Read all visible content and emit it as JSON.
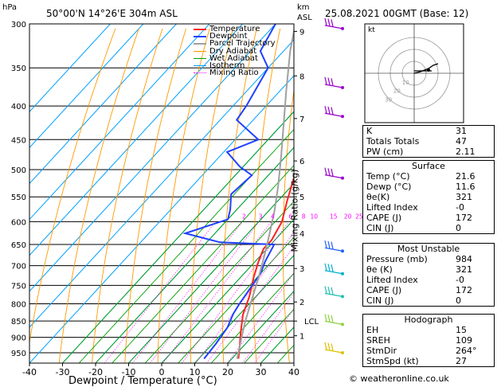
{
  "header": {
    "location": "50°00'N  14°26'E  304m  ASL",
    "datetime": "25.08.2021  00GMT  (Base: 12)",
    "hpa_unit": "hPa",
    "km_unit": "km",
    "asl_unit": "ASL"
  },
  "axes": {
    "xlabel": "Dewpoint / Temperature (°C)",
    "ylabel_right": "Mixing Ratio (g/kg)"
  },
  "colors": {
    "temperature": "#ff2020",
    "dewpoint": "#2040ff",
    "parcel": "#a0a0a0",
    "dry_adiabat": "#ff9900",
    "wet_adiabat": "#00a000",
    "isotherm": "#00a0ff",
    "mixing_ratio": "#ff00ff"
  },
  "legend": [
    {
      "label": "Temperature",
      "color": "#ff2020",
      "style": "solid"
    },
    {
      "label": "Dewpoint",
      "color": "#2040ff",
      "style": "solid"
    },
    {
      "label": "Parcel Trajectory",
      "color": "#a0a0a0",
      "style": "solid"
    },
    {
      "label": "Dry Adiabat",
      "color": "#ff9900",
      "style": "solid"
    },
    {
      "label": "Wet Adiabat",
      "color": "#00a000",
      "style": "solid"
    },
    {
      "label": "Isotherm",
      "color": "#00a0ff",
      "style": "solid"
    },
    {
      "label": "Mixing Ratio",
      "color": "#ff00ff",
      "style": "dotted"
    }
  ],
  "chart_data": {
    "type": "line",
    "xlim": [
      -40,
      40
    ],
    "pressure_levels": [
      300,
      350,
      400,
      450,
      500,
      550,
      600,
      650,
      700,
      750,
      800,
      850,
      900,
      950
    ],
    "x_ticks": [
      -40,
      -30,
      -20,
      -10,
      0,
      10,
      20,
      30,
      40
    ],
    "km_ticks": [
      {
        "label": "9",
        "p": 308
      },
      {
        "label": "8",
        "p": 360
      },
      {
        "label": "7",
        "p": 418
      },
      {
        "label": "6",
        "p": 485
      },
      {
        "label": "5",
        "p": 550
      },
      {
        "label": "4",
        "p": 625
      },
      {
        "label": "3",
        "p": 707
      },
      {
        "label": "2",
        "p": 795
      },
      {
        "label": "1",
        "p": 895
      }
    ],
    "lcl_label": "LCL",
    "lcl_p": 850,
    "mixing_ratio_labels": [
      "2",
      "3",
      "4",
      "6",
      "8",
      "10",
      "15",
      "20",
      "25"
    ],
    "series": [
      {
        "name": "Temperature",
        "points": [
          [
            22,
            970
          ],
          [
            19,
            930
          ],
          [
            15,
            880
          ],
          [
            11,
            830
          ],
          [
            8,
            780
          ],
          [
            4,
            730
          ],
          [
            1,
            690
          ],
          [
            -1,
            660
          ],
          [
            -1,
            640
          ],
          [
            -3,
            600
          ],
          [
            -7,
            560
          ],
          [
            -11,
            520
          ],
          [
            -13,
            500
          ],
          [
            -16,
            470
          ],
          [
            -18,
            450
          ],
          [
            -23,
            410
          ],
          [
            -28,
            370
          ],
          [
            -34,
            330
          ],
          [
            -39,
            300
          ]
        ]
      },
      {
        "name": "Dewpoint",
        "points": [
          [
            11.6,
            970
          ],
          [
            11,
            920
          ],
          [
            10,
            870
          ],
          [
            8,
            830
          ],
          [
            7,
            800
          ],
          [
            6,
            760
          ],
          [
            5,
            720
          ],
          [
            3,
            690
          ],
          [
            1,
            650
          ],
          [
            -16,
            645
          ],
          [
            -29,
            625
          ],
          [
            -20,
            595
          ],
          [
            -22,
            575
          ],
          [
            -26,
            545
          ],
          [
            -25,
            510
          ],
          [
            -31,
            495
          ],
          [
            -39,
            470
          ],
          [
            -33,
            450
          ],
          [
            -45,
            420
          ],
          [
            -46,
            400
          ],
          [
            -50,
            350
          ],
          [
            -57,
            330
          ],
          [
            -60,
            300
          ]
        ]
      },
      {
        "name": "Parcel Trajectory",
        "points": [
          [
            21.6,
            970
          ],
          [
            17,
            900
          ],
          [
            13.6,
            850
          ],
          [
            9,
            780
          ],
          [
            5.5,
            730
          ],
          [
            1.5,
            680
          ],
          [
            -3,
            630
          ],
          [
            -8,
            580
          ],
          [
            -14,
            530
          ],
          [
            -21,
            480
          ],
          [
            -29,
            430
          ],
          [
            -38,
            380
          ],
          [
            -48,
            330
          ],
          [
            -54,
            300
          ]
        ]
      }
    ]
  },
  "hodograph": {
    "unit_label": "kt",
    "ring_labels": [
      "10",
      "20",
      "30"
    ]
  },
  "indices": [
    {
      "label": "K",
      "value": "31"
    },
    {
      "label": "Totals Totals",
      "value": "47"
    },
    {
      "label": "PW (cm)",
      "value": "2.11"
    }
  ],
  "surface": {
    "title": "Surface",
    "rows": [
      {
        "label": "Temp (°C)",
        "value": "21.6"
      },
      {
        "label": "Dewp (°C)",
        "value": "11.6"
      },
      {
        "label": "θe(K)",
        "value": "321"
      },
      {
        "label": "Lifted Index",
        "value": "-0"
      },
      {
        "label": "CAPE (J)",
        "value": "172"
      },
      {
        "label": "CIN (J)",
        "value": "0"
      }
    ]
  },
  "most_unstable": {
    "title": "Most Unstable",
    "rows": [
      {
        "label": "Pressure (mb)",
        "value": "984"
      },
      {
        "label": "θe (K)",
        "value": "321"
      },
      {
        "label": "Lifted Index",
        "value": "-0"
      },
      {
        "label": "CAPE (J)",
        "value": "172"
      },
      {
        "label": "CIN (J)",
        "value": "0"
      }
    ]
  },
  "hodograph_table": {
    "title": "Hodograph",
    "rows": [
      {
        "label": "EH",
        "value": "15"
      },
      {
        "label": "SREH",
        "value": "109"
      },
      {
        "label": "StmDir",
        "value": "264°"
      },
      {
        "label": "StmSpd (kt)",
        "value": "27"
      }
    ]
  },
  "copyright": "© weatheronline.co.uk"
}
